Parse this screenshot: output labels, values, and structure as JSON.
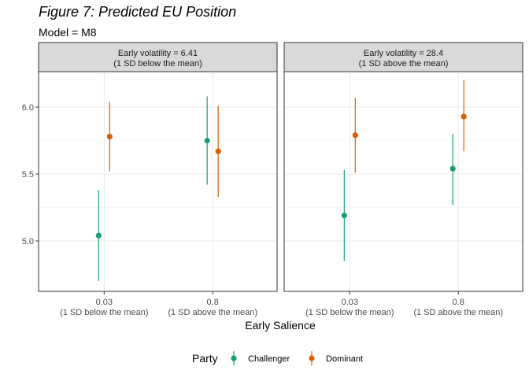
{
  "chart_data": {
    "type": "scatter",
    "title": "Figure 7: Predicted EU Position",
    "subtitle": "Model = M8",
    "xlabel": "Early Salience",
    "ylabel": "",
    "ylim": [
      4.7,
      6.25
    ],
    "yticks": [
      "5.0",
      "5.5",
      "6.0"
    ],
    "categories": [
      {
        "value": "0.03",
        "note": "(1 SD below the mean)"
      },
      {
        "value": "0.8",
        "note": "(1 SD above the mean)"
      }
    ],
    "legend": {
      "title": "Party",
      "position": "bottom",
      "entries": [
        "Challenger",
        "Dominant"
      ]
    },
    "colors": {
      "Challenger": "#1b9e77",
      "Dominant": "#d95f02"
    },
    "grid": true,
    "facets": [
      {
        "label_line1": "Early volatility = 6.41",
        "label_line2": "(1 SD below the mean)",
        "series": [
          {
            "name": "Challenger",
            "points": [
              {
                "x": "0.03",
                "y": 5.04,
                "lo": 4.7,
                "hi": 5.38
              },
              {
                "x": "0.8",
                "y": 5.75,
                "lo": 5.42,
                "hi": 6.08
              }
            ]
          },
          {
            "name": "Dominant",
            "points": [
              {
                "x": "0.03",
                "y": 5.78,
                "lo": 5.52,
                "hi": 6.04
              },
              {
                "x": "0.8",
                "y": 5.67,
                "lo": 5.33,
                "hi": 6.01
              }
            ]
          }
        ]
      },
      {
        "label_line1": "Early volatility = 28.4",
        "label_line2": "(1 SD above the mean)",
        "series": [
          {
            "name": "Challenger",
            "points": [
              {
                "x": "0.03",
                "y": 5.19,
                "lo": 4.85,
                "hi": 5.53
              },
              {
                "x": "0.8",
                "y": 5.54,
                "lo": 5.27,
                "hi": 5.8
              }
            ]
          },
          {
            "name": "Dominant",
            "points": [
              {
                "x": "0.03",
                "y": 5.79,
                "lo": 5.51,
                "hi": 6.07
              },
              {
                "x": "0.8",
                "y": 5.93,
                "lo": 5.67,
                "hi": 6.2
              }
            ]
          }
        ]
      }
    ]
  }
}
